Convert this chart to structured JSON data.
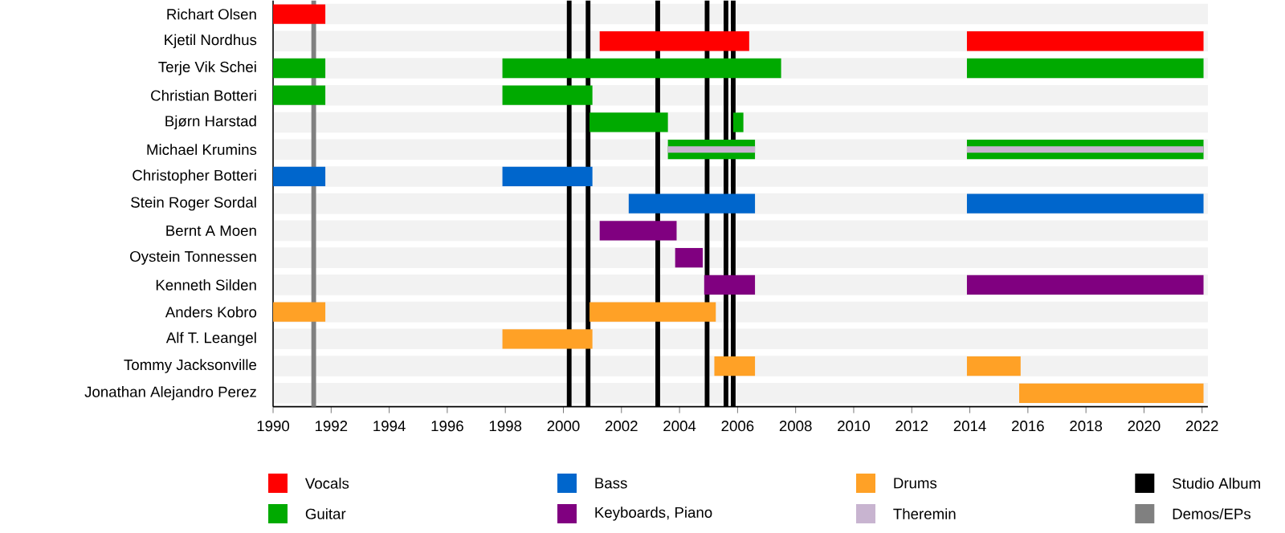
{
  "chart_data": {
    "type": "bar",
    "orientation": "horizontal",
    "grid": "y",
    "legend": "bottom",
    "categories": [
      "Richart Olsen",
      "Kjetil Nordhus",
      "Terje Vik Schei",
      "Christian Botteri",
      "Bjørn Harstad",
      "Michael Krumins",
      "Christopher Botteri",
      "Stein Roger Sordal",
      "Bernt A Moen",
      "Oystein Tonnessen",
      "Kenneth Silden",
      "Anders Kobro",
      "Alf T. Leangel",
      "Tommy Jacksonville",
      "Jonathan Alejandro Perez"
    ],
    "xlim": [
      1990,
      2022.2
    ],
    "xticks": [
      1990,
      1992,
      1994,
      1996,
      1998,
      2000,
      2002,
      2004,
      2006,
      2008,
      2010,
      2012,
      2014,
      2016,
      2018,
      2020,
      2022
    ],
    "series": [
      {
        "name": "Vocals",
        "color": "#ff0000",
        "base": [
          1990,
          2001.25,
          null,
          null,
          null,
          null,
          null,
          null,
          null,
          null,
          null,
          null,
          null,
          null,
          null
        ],
        "values": [
          1.8,
          5.15,
          null,
          null,
          null,
          null,
          null,
          null,
          null,
          null,
          null,
          null,
          null,
          null,
          null
        ]
      },
      {
        "name": "Guitar",
        "color": "#00aa00",
        "base": [
          null,
          null,
          1990,
          1990,
          2000.9,
          2003.6,
          null,
          null,
          null,
          null,
          null,
          null,
          null,
          null,
          null
        ],
        "values": [
          null,
          null,
          1.8,
          1.8,
          2.7,
          3.0,
          null,
          null,
          null,
          null,
          null,
          null,
          null,
          null,
          null
        ]
      },
      {
        "name": "Bass",
        "color": "#0066cc",
        "base": [
          null,
          null,
          null,
          null,
          null,
          null,
          1990,
          2002.25,
          null,
          null,
          null,
          null,
          null,
          null,
          null
        ],
        "values": [
          null,
          null,
          null,
          null,
          null,
          null,
          1.8,
          4.35,
          null,
          null,
          null,
          null,
          null,
          null,
          null
        ]
      },
      {
        "name": "Keyboards, Piano",
        "color": "#800080",
        "base": [
          null,
          null,
          null,
          null,
          null,
          null,
          null,
          null,
          2001.25,
          2003.85,
          2004.85,
          null,
          null,
          null,
          null
        ],
        "values": [
          null,
          null,
          null,
          null,
          null,
          null,
          null,
          null,
          2.65,
          0.95,
          1.75,
          null,
          null,
          null,
          null
        ]
      },
      {
        "name": "Drums",
        "color": "#ffa126",
        "base": [
          null,
          null,
          null,
          null,
          null,
          null,
          null,
          null,
          null,
          null,
          null,
          1990,
          1997.9,
          2005.2,
          2015.7
        ],
        "values": [
          null,
          null,
          null,
          null,
          null,
          null,
          null,
          null,
          null,
          null,
          null,
          1.8,
          3.1,
          1.4,
          6.35
        ]
      },
      {
        "name": "Theremin",
        "color": "#c8b4d0",
        "base": [
          null,
          null,
          null,
          null,
          null,
          2003.6,
          null,
          null,
          null,
          null,
          null,
          null,
          null,
          null,
          null
        ],
        "values": [
          null,
          null,
          null,
          null,
          null,
          3.0,
          null,
          null,
          null,
          null,
          null,
          null,
          null,
          null,
          null
        ]
      },
      {
        "color": "#ff0000",
        "base": [
          null,
          2013.9,
          null,
          null,
          null,
          null,
          null,
          null,
          null,
          null,
          null,
          null,
          null,
          null,
          null
        ],
        "values": [
          null,
          8.15,
          null,
          null,
          null,
          null,
          null,
          null,
          null,
          null,
          null,
          null,
          null,
          null,
          null
        ]
      },
      {
        "color": "#00aa00",
        "base": [
          null,
          null,
          1997.9,
          1997.9,
          2005.85,
          2013.9,
          null,
          null,
          null,
          null,
          null,
          null,
          null,
          null,
          null
        ],
        "values": [
          null,
          null,
          9.6,
          3.1,
          0.35,
          8.15,
          null,
          null,
          null,
          null,
          null,
          null,
          null,
          null,
          null
        ]
      },
      {
        "color": "#00aa00",
        "base": [
          null,
          null,
          2013.9,
          null,
          null,
          null,
          null,
          null,
          null,
          null,
          null,
          null,
          null,
          null,
          null
        ],
        "values": [
          null,
          null,
          8.15,
          null,
          null,
          null,
          null,
          null,
          null,
          null,
          null,
          null,
          null,
          null,
          null
        ]
      },
      {
        "color": "#0066cc",
        "base": [
          null,
          null,
          null,
          null,
          null,
          null,
          1997.9,
          2013.9,
          null,
          null,
          null,
          null,
          null,
          null,
          null
        ],
        "values": [
          null,
          null,
          null,
          null,
          null,
          null,
          3.1,
          8.15,
          null,
          null,
          null,
          null,
          null,
          null,
          null
        ]
      },
      {
        "color": "#800080",
        "base": [
          null,
          null,
          null,
          null,
          null,
          null,
          null,
          null,
          null,
          null,
          2013.9,
          null,
          null,
          null,
          null
        ],
        "values": [
          null,
          null,
          null,
          null,
          null,
          null,
          null,
          null,
          null,
          null,
          8.15,
          null,
          null,
          null,
          null
        ]
      },
      {
        "color": "#ffa126",
        "base": [
          null,
          null,
          null,
          null,
          null,
          null,
          null,
          null,
          null,
          null,
          null,
          2000.9,
          null,
          2013.9,
          null
        ],
        "values": [
          null,
          null,
          null,
          null,
          null,
          null,
          null,
          null,
          null,
          null,
          null,
          4.35,
          null,
          1.85,
          null
        ]
      },
      {
        "color": "#c8b4d0",
        "base": [
          null,
          null,
          null,
          null,
          null,
          2013.9,
          null,
          null,
          null,
          null,
          null,
          null,
          null,
          null,
          null
        ],
        "values": [
          null,
          null,
          null,
          null,
          null,
          8.15,
          null,
          null,
          null,
          null,
          null,
          null,
          null,
          null,
          null
        ]
      }
    ],
    "ref_lines": [
      {
        "axis": "x",
        "value": 2000.2,
        "color": "#000000"
      },
      {
        "axis": "x",
        "value": 2000.85,
        "color": "#000000"
      },
      {
        "axis": "x",
        "value": 2003.25,
        "color": "#000000"
      },
      {
        "axis": "x",
        "value": 2004.95,
        "color": "#000000"
      },
      {
        "axis": "x",
        "value": 2005.6,
        "color": "#000000"
      },
      {
        "axis": "x",
        "value": 2005.85,
        "color": "#000000"
      },
      {
        "axis": "x",
        "value": 1991.4,
        "color": "#808080"
      }
    ],
    "annotations": [
      "Studio Album",
      "Demos/EPs"
    ]
  }
}
